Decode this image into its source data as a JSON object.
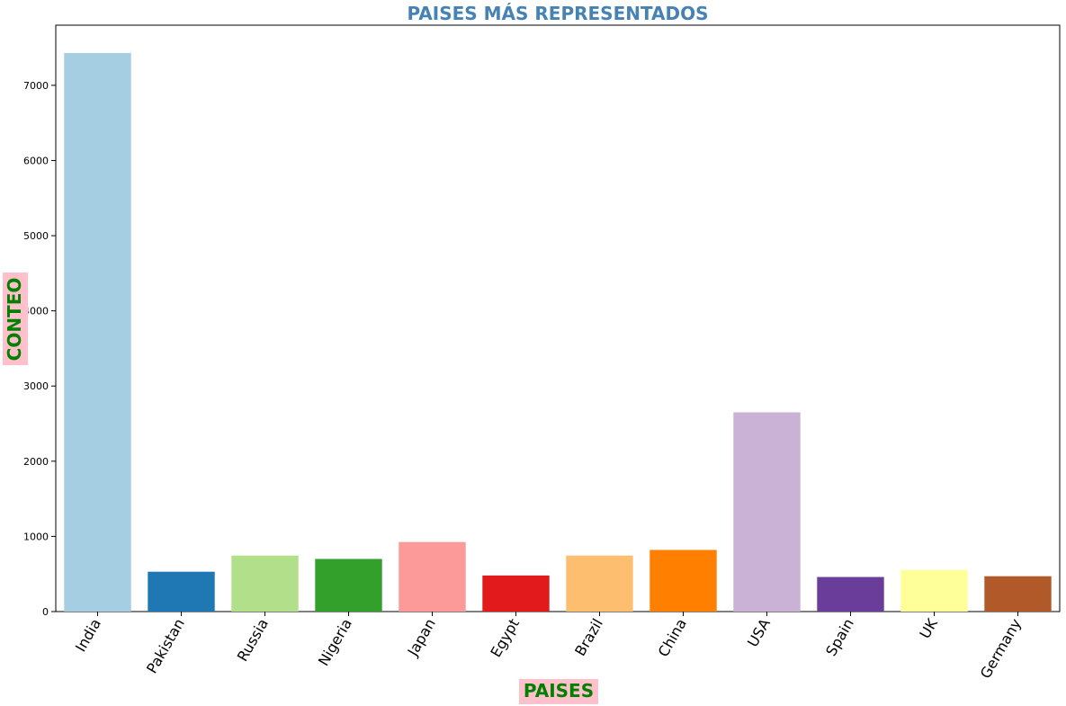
{
  "chart_data": {
    "type": "bar",
    "title": "PAISES MÁS REPRESENTADOS",
    "xlabel": "PAISES",
    "ylabel": "CONTEO",
    "categories": [
      "India",
      "Pakistan",
      "Russia",
      "Nigeria",
      "Japan",
      "Egypt",
      "Brazil",
      "China",
      "USA",
      "Spain",
      "UK",
      "Germany"
    ],
    "values": [
      7430,
      530,
      745,
      700,
      925,
      480,
      745,
      820,
      2650,
      460,
      555,
      470
    ],
    "colors": [
      "#a6cee3",
      "#1f78b4",
      "#b2df8a",
      "#33a02c",
      "#fb9a99",
      "#e31a1c",
      "#fdbf6f",
      "#ff7f00",
      "#cab2d6",
      "#6a3d9a",
      "#ffff99",
      "#b15928"
    ],
    "ylim": [
      0,
      7800
    ],
    "yticks": [
      0,
      1000,
      2000,
      3000,
      4000,
      5000,
      6000,
      7000
    ],
    "grid": false,
    "legend": "none",
    "label_box_color": "#ffc0cb"
  }
}
